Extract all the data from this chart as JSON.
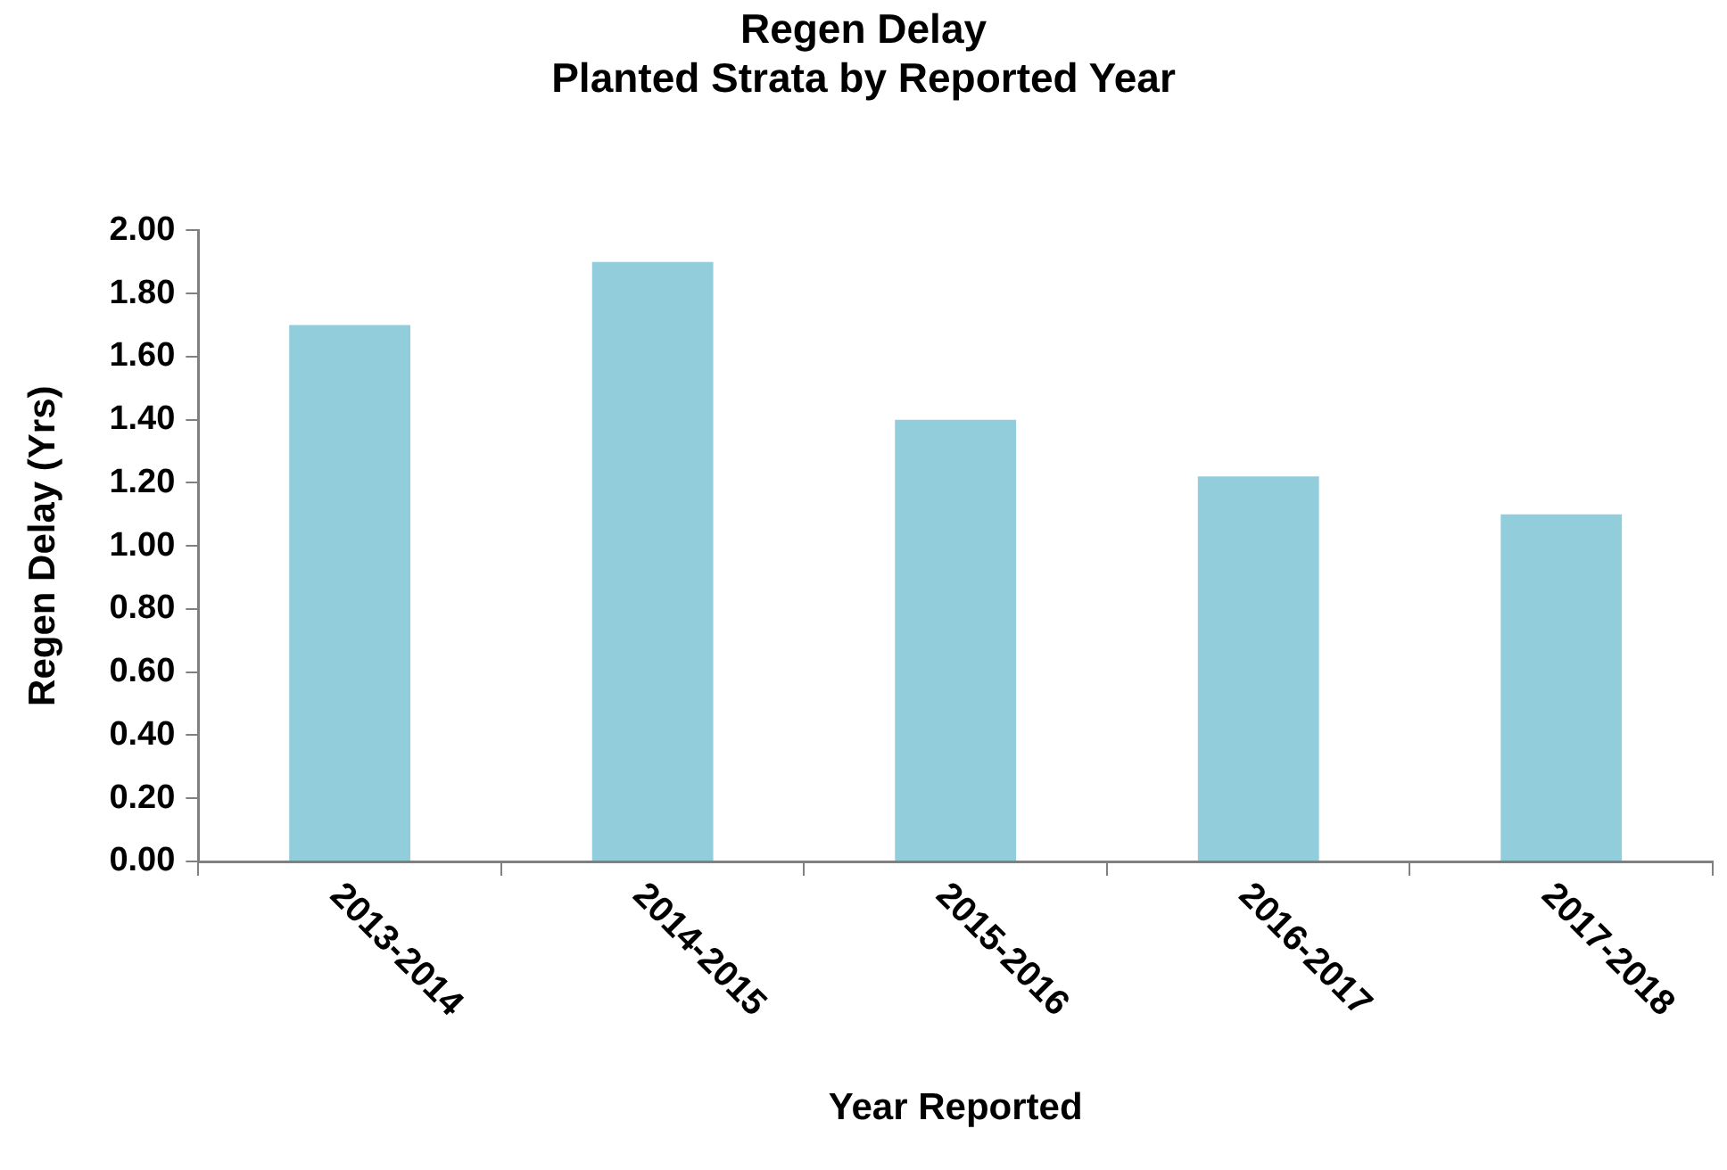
{
  "chart_data": {
    "type": "bar",
    "title": "Regen Delay\nPlanted Strata by Reported Year",
    "xlabel": "Year Reported",
    "ylabel": "Regen Delay (Yrs)",
    "categories": [
      "2013-2014",
      "2014-2015",
      "2015-2016",
      "2016-2017",
      "2017-2018"
    ],
    "values": [
      1.7,
      1.9,
      1.4,
      1.22,
      1.1
    ],
    "color": "#92cddc",
    "ylim": [
      0,
      2
    ],
    "yticks": [
      {
        "value": 0,
        "label": "0.00"
      },
      {
        "value": 0.2,
        "label": "0.20"
      },
      {
        "value": 0.4,
        "label": "0.40"
      },
      {
        "value": 0.6,
        "label": "0.60"
      },
      {
        "value": 0.8,
        "label": "0.80"
      },
      {
        "value": 1,
        "label": "1.00"
      },
      {
        "value": 1.2,
        "label": "1.20"
      },
      {
        "value": 1.4,
        "label": "1.40"
      },
      {
        "value": 1.6,
        "label": "1.60"
      },
      {
        "value": 1.8,
        "label": "1.80"
      },
      {
        "value": 2,
        "label": "2.00"
      }
    ],
    "grid": false,
    "legend": false
  }
}
